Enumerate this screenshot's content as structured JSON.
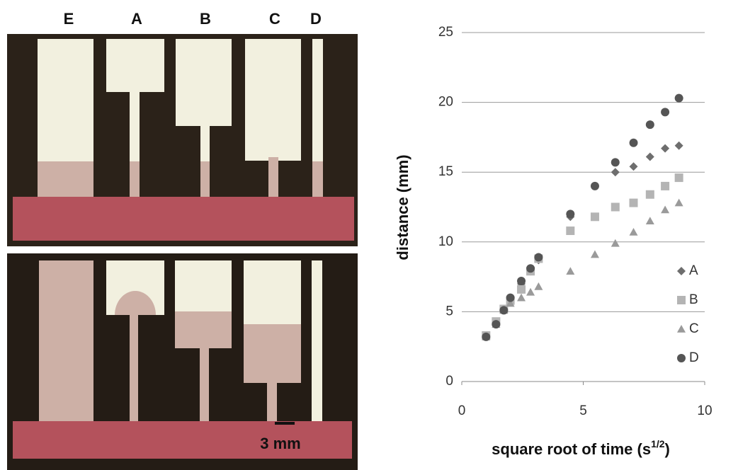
{
  "photo": {
    "strip_labels": [
      "E",
      "A",
      "B",
      "C",
      "D"
    ],
    "scale_bar": "3 mm"
  },
  "chart_data": {
    "type": "scatter",
    "ylabel": "distance (mm)",
    "xlabel_parts": [
      "square root of time (s",
      "1/2",
      ")"
    ],
    "x": [
      1,
      1.41,
      1.73,
      2,
      2.45,
      2.83,
      3.16,
      4.47,
      5.48,
      6.32,
      7.07,
      7.75,
      8.37,
      8.94
    ],
    "series": [
      {
        "name": "A",
        "color": "#6e6e6e",
        "marker": "diamond",
        "values": [
          3.3,
          4.2,
          5.2,
          5.9,
          7.0,
          7.9,
          8.7,
          11.8,
          14.0,
          15.0,
          15.4,
          16.1,
          16.7,
          16.9
        ]
      },
      {
        "name": "B",
        "color": "#b4b4b4",
        "marker": "square",
        "values": [
          3.3,
          4.3,
          5.2,
          5.8,
          6.6,
          7.9,
          8.8,
          10.8,
          11.8,
          12.5,
          12.8,
          13.4,
          14.0,
          14.6
        ]
      },
      {
        "name": "C",
        "color": "#9a9a9a",
        "marker": "triangle",
        "values": [
          3.2,
          4.1,
          5.1,
          5.6,
          6.0,
          6.4,
          6.8,
          7.9,
          9.1,
          9.9,
          10.7,
          11.5,
          12.3,
          12.8
        ]
      },
      {
        "name": "D",
        "color": "#555555",
        "marker": "circle",
        "values": [
          3.2,
          4.1,
          5.1,
          6.0,
          7.2,
          8.1,
          8.9,
          12.0,
          14.0,
          15.7,
          17.1,
          18.4,
          19.3,
          20.3
        ]
      }
    ],
    "xlim": [
      0,
      10
    ],
    "xticks": [
      0,
      5,
      10
    ],
    "ylim": [
      0,
      25
    ],
    "yticks": [
      0,
      5,
      10,
      15,
      20,
      25
    ],
    "grid": true,
    "legend": "right"
  }
}
